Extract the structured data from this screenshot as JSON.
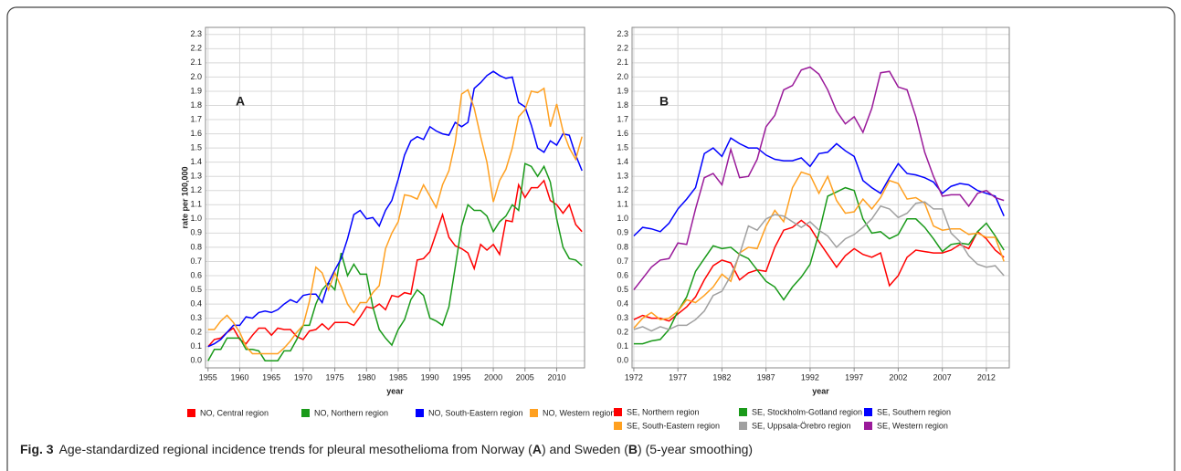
{
  "chart_data": [
    {
      "type": "line",
      "annotation": "A",
      "y_label": "rate per 100,000",
      "x_label": "year",
      "xlim": [
        1954.6,
        2014.4
      ],
      "xticks": [
        1955,
        1960,
        1965,
        1970,
        1975,
        1980,
        1985,
        1990,
        1995,
        2000,
        2005,
        2010
      ],
      "ylim": [
        -0.05,
        2.35
      ],
      "yticks": [
        {
          "value": 0,
          "label": "0.0"
        },
        0.1,
        0.2,
        0.3,
        0.4,
        0.5,
        0.6,
        0.7,
        0.8,
        0.9,
        {
          "value": 1,
          "label": "1.0"
        },
        1.1,
        1.2,
        1.3,
        1.4,
        1.5,
        1.6,
        1.7,
        1.8,
        1.9,
        {
          "value": 2,
          "label": "2.0"
        },
        2.1,
        2.2,
        2.3
      ],
      "grid": true,
      "x": [
        1955,
        1956,
        1957,
        1958,
        1959,
        1960,
        1961,
        1962,
        1963,
        1964,
        1965,
        1966,
        1967,
        1968,
        1969,
        1970,
        1971,
        1972,
        1973,
        1974,
        1975,
        1976,
        1977,
        1978,
        1979,
        1980,
        1981,
        1982,
        1983,
        1984,
        1985,
        1986,
        1987,
        1988,
        1989,
        1990,
        1991,
        1992,
        1993,
        1994,
        1995,
        1996,
        1997,
        1998,
        1999,
        2000,
        2001,
        2002,
        2003,
        2004,
        2005,
        2006,
        2007,
        2008,
        2009,
        2010,
        2011,
        2012,
        2013,
        2014
      ],
      "series": [
        {
          "name": "NO, Central region",
          "color": "#ff0000",
          "values": [
            0.1,
            0.15,
            0.16,
            0.2,
            0.23,
            0.15,
            0.12,
            0.18,
            0.23,
            0.23,
            0.18,
            0.23,
            0.22,
            0.22,
            0.17,
            0.15,
            0.21,
            0.22,
            0.26,
            0.22,
            0.27,
            0.27,
            0.27,
            0.25,
            0.31,
            0.38,
            0.37,
            0.4,
            0.36,
            0.46,
            0.45,
            0.48,
            0.47,
            0.71,
            0.72,
            0.77,
            0.9,
            1.03,
            0.87,
            0.81,
            0.79,
            0.76,
            0.65,
            0.82,
            0.78,
            0.82,
            0.75,
            0.99,
            0.98,
            1.24,
            1.15,
            1.22,
            1.22,
            1.27,
            1.13,
            1.1,
            1.04,
            1.1,
            0.96,
            0.91
          ]
        },
        {
          "name": "NO, Northern region",
          "color": "#1a9a1a",
          "values": [
            0,
            0.08,
            0.08,
            0.16,
            0.16,
            0.16,
            0.08,
            0.08,
            0.07,
            0,
            0,
            0,
            0.07,
            0.07,
            0.15,
            0.25,
            0.25,
            0.4,
            0.5,
            0.55,
            0.5,
            0.76,
            0.6,
            0.68,
            0.61,
            0.61,
            0.38,
            0.22,
            0.16,
            0.11,
            0.22,
            0.29,
            0.43,
            0.5,
            0.46,
            0.3,
            0.28,
            0.25,
            0.38,
            0.66,
            0.95,
            1.1,
            1.06,
            1.06,
            1.02,
            0.91,
            0.98,
            1.02,
            1.1,
            1.06,
            1.39,
            1.37,
            1.3,
            1.37,
            1.26,
            1,
            0.8,
            0.72,
            0.71,
            0.67
          ]
        },
        {
          "name": "NO, South-Eastern region",
          "color": "#0000ff",
          "values": [
            0.1,
            0.12,
            0.15,
            0.2,
            0.25,
            0.25,
            0.31,
            0.3,
            0.34,
            0.35,
            0.34,
            0.36,
            0.4,
            0.43,
            0.41,
            0.46,
            0.47,
            0.47,
            0.41,
            0.55,
            0.64,
            0.72,
            0.86,
            1.03,
            1.06,
            1,
            1.01,
            0.95,
            1.06,
            1.13,
            1.28,
            1.45,
            1.55,
            1.58,
            1.56,
            1.65,
            1.62,
            1.6,
            1.59,
            1.68,
            1.65,
            1.68,
            1.92,
            1.96,
            2.01,
            2.04,
            2.01,
            1.99,
            2,
            1.82,
            1.79,
            1.66,
            1.5,
            1.47,
            1.55,
            1.52,
            1.6,
            1.59,
            1.45,
            1.34
          ]
        },
        {
          "name": "NO, Western region",
          "color": "#ffa020",
          "values": [
            0.22,
            0.22,
            0.28,
            0.32,
            0.27,
            0.2,
            0.1,
            0.05,
            0.05,
            0.05,
            0.05,
            0.05,
            0.09,
            0.14,
            0.2,
            0.25,
            0.42,
            0.66,
            0.62,
            0.5,
            0.62,
            0.52,
            0.4,
            0.34,
            0.41,
            0.41,
            0.48,
            0.53,
            0.79,
            0.9,
            0.98,
            1.17,
            1.16,
            1.14,
            1.24,
            1.16,
            1.08,
            1.24,
            1.34,
            1.54,
            1.88,
            1.91,
            1.78,
            1.58,
            1.4,
            1.12,
            1.27,
            1.35,
            1.5,
            1.72,
            1.77,
            1.9,
            1.89,
            1.92,
            1.65,
            1.81,
            1.62,
            1.5,
            1.42,
            1.58
          ]
        }
      ]
    },
    {
      "type": "line",
      "annotation": "B",
      "x_label": "year",
      "xlim": [
        1971.8,
        2014.6
      ],
      "xticks": [
        1972,
        1977,
        1982,
        1987,
        1992,
        1997,
        2002,
        2007,
        2012
      ],
      "ylim": [
        -0.05,
        2.35
      ],
      "yticks": [
        {
          "value": 0,
          "label": "0.0"
        },
        0.1,
        0.2,
        0.3,
        0.4,
        0.5,
        0.6,
        0.7,
        0.8,
        0.9,
        {
          "value": 1,
          "label": "1.0"
        },
        1.1,
        1.2,
        1.3,
        1.4,
        1.5,
        1.6,
        1.7,
        1.8,
        1.9,
        {
          "value": 2,
          "label": "2.0"
        },
        2.1,
        2.2,
        2.3
      ],
      "grid": true,
      "x": [
        1972,
        1973,
        1974,
        1975,
        1976,
        1977,
        1978,
        1979,
        1980,
        1981,
        1982,
        1983,
        1984,
        1985,
        1986,
        1987,
        1988,
        1989,
        1990,
        1991,
        1992,
        1993,
        1994,
        1995,
        1996,
        1997,
        1998,
        1999,
        2000,
        2001,
        2002,
        2003,
        2004,
        2005,
        2006,
        2007,
        2008,
        2009,
        2010,
        2011,
        2012,
        2013,
        2014
      ],
      "series": [
        {
          "name": "SE, Northern region",
          "color": "#ff0000",
          "values": [
            0.29,
            0.32,
            0.3,
            0.3,
            0.28,
            0.33,
            0.38,
            0.45,
            0.57,
            0.67,
            0.71,
            0.69,
            0.57,
            0.62,
            0.64,
            0.63,
            0.8,
            0.92,
            0.94,
            0.99,
            0.94,
            0.84,
            0.75,
            0.66,
            0.74,
            0.79,
            0.75,
            0.73,
            0.76,
            0.53,
            0.6,
            0.73,
            0.78,
            0.77,
            0.76,
            0.76,
            0.78,
            0.82,
            0.79,
            0.91,
            0.86,
            0.78,
            0.73
          ]
        },
        {
          "name": "SE, Stockholm-Gotland region",
          "color": "#1a9a1a",
          "values": [
            0.12,
            0.12,
            0.14,
            0.15,
            0.22,
            0.35,
            0.45,
            0.63,
            0.72,
            0.81,
            0.79,
            0.8,
            0.75,
            0.72,
            0.64,
            0.56,
            0.52,
            0.43,
            0.52,
            0.59,
            0.68,
            0.9,
            1.16,
            1.19,
            1.22,
            1.2,
            1,
            0.9,
            0.91,
            0.86,
            0.89,
            1,
            1,
            0.94,
            0.86,
            0.77,
            0.82,
            0.83,
            0.82,
            0.91,
            0.97,
            0.88,
            0.78
          ]
        },
        {
          "name": "SE, Southern region",
          "color": "#0000ff",
          "values": [
            0.88,
            0.94,
            0.93,
            0.91,
            0.97,
            1.07,
            1.14,
            1.22,
            1.46,
            1.5,
            1.44,
            1.57,
            1.53,
            1.5,
            1.5,
            1.45,
            1.42,
            1.41,
            1.41,
            1.43,
            1.37,
            1.46,
            1.47,
            1.53,
            1.48,
            1.44,
            1.27,
            1.22,
            1.18,
            1.29,
            1.39,
            1.32,
            1.31,
            1.29,
            1.26,
            1.18,
            1.23,
            1.25,
            1.24,
            1.2,
            1.18,
            1.16,
            1.02
          ]
        },
        {
          "name": "SE, South-Eastern region",
          "color": "#ffa020",
          "values": [
            0.23,
            0.3,
            0.34,
            0.29,
            0.3,
            0.35,
            0.43,
            0.41,
            0.46,
            0.52,
            0.61,
            0.56,
            0.76,
            0.8,
            0.79,
            0.95,
            1.06,
            0.98,
            1.22,
            1.33,
            1.31,
            1.18,
            1.3,
            1.13,
            1.04,
            1.05,
            1.14,
            1.07,
            1.15,
            1.27,
            1.25,
            1.14,
            1.15,
            1.11,
            0.95,
            0.92,
            0.93,
            0.93,
            0.89,
            0.9,
            0.87,
            0.87,
            0.7
          ]
        },
        {
          "name": "SE, Uppsala-Örebro region",
          "color": "#a0a0a0",
          "values": [
            0.22,
            0.24,
            0.21,
            0.24,
            0.22,
            0.25,
            0.25,
            0.29,
            0.35,
            0.46,
            0.49,
            0.6,
            0.75,
            0.95,
            0.92,
            1,
            1.03,
            1.02,
            0.98,
            0.94,
            0.98,
            0.92,
            0.88,
            0.8,
            0.86,
            0.89,
            0.94,
            1,
            1.09,
            1.07,
            1.01,
            1.04,
            1.11,
            1.12,
            1.07,
            1.07,
            0.9,
            0.84,
            0.74,
            0.68,
            0.66,
            0.67,
            0.6
          ]
        },
        {
          "name": "SE, Western region",
          "color": "#9a1a9a",
          "values": [
            0.5,
            0.58,
            0.66,
            0.71,
            0.72,
            0.83,
            0.82,
            1.07,
            1.29,
            1.32,
            1.24,
            1.49,
            1.29,
            1.3,
            1.42,
            1.65,
            1.73,
            1.91,
            1.94,
            2.05,
            2.07,
            2.02,
            1.91,
            1.76,
            1.67,
            1.72,
            1.61,
            1.78,
            2.03,
            2.04,
            1.93,
            1.91,
            1.72,
            1.47,
            1.3,
            1.16,
            1.17,
            1.17,
            1.09,
            1.18,
            1.2,
            1.15,
            1.13
          ]
        }
      ]
    }
  ],
  "caption": {
    "label": "Fig. 3",
    "parts": [
      "Age-standardized regional incidence trends for pleural mesothelioma from Norway (",
      "A",
      ") and Sweden (",
      "B",
      ") (5-year smoothing)"
    ]
  }
}
